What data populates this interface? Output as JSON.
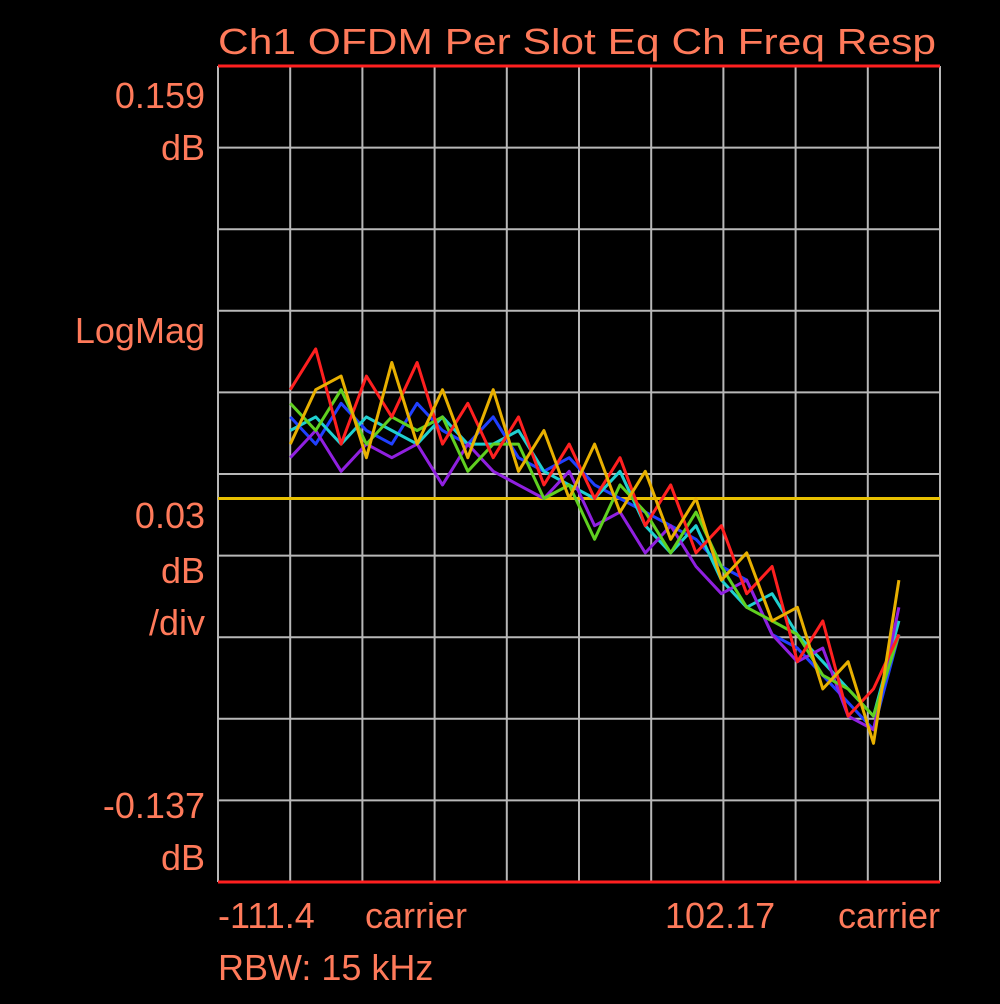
{
  "chart_data": {
    "type": "line",
    "title": "Ch1 OFDM Per Slot Eq Ch Freq Resp",
    "y_unit": "dB",
    "y_mode": "LogMag",
    "scale_per_div": 0.03,
    "per_div_label": "/div",
    "y_bottom_label": -0.137,
    "x_unit": "carrier",
    "rbw_label": "RBW: 15 kHz",
    "xlim": [
      -111.4,
      102.17
    ],
    "ylim": [
      -0.141,
      0.159
    ],
    "x_divisions": 10,
    "y_divisions": 10,
    "grid": true,
    "reference_line": {
      "value": 0,
      "color": "#e8c000"
    },
    "x": [
      -90,
      -82.5,
      -75,
      -67.5,
      -60,
      -52.5,
      -45,
      -37.5,
      -30,
      -22.5,
      -15,
      -7.5,
      0,
      7.5,
      15,
      22.5,
      30,
      37.5,
      45,
      52.5,
      60,
      67.5,
      75,
      82.5,
      90
    ],
    "series": [
      {
        "color": "#2040ff",
        "values": [
          0.03,
          0.02,
          0.035,
          0.025,
          0.02,
          0.035,
          0.025,
          0.02,
          0.03,
          0.015,
          0.01,
          0.015,
          0.005,
          0.0,
          -0.005,
          -0.01,
          -0.015,
          -0.025,
          -0.03,
          -0.05,
          -0.055,
          -0.065,
          -0.075,
          -0.085,
          -0.05
        ]
      },
      {
        "color": "#20d0d0",
        "values": [
          0.025,
          0.03,
          0.02,
          0.03,
          0.025,
          0.02,
          0.03,
          0.02,
          0.02,
          0.025,
          0.01,
          0.005,
          0.0,
          0.01,
          -0.01,
          -0.02,
          -0.01,
          -0.03,
          -0.04,
          -0.035,
          -0.05,
          -0.06,
          -0.07,
          -0.08,
          -0.045
        ]
      },
      {
        "color": "#9020e0",
        "values": [
          0.015,
          0.025,
          0.01,
          0.02,
          0.015,
          0.02,
          0.005,
          0.02,
          0.01,
          0.005,
          0.0,
          0.01,
          -0.01,
          -0.005,
          -0.02,
          -0.01,
          -0.025,
          -0.035,
          -0.03,
          -0.05,
          -0.06,
          -0.055,
          -0.08,
          -0.085,
          -0.04
        ]
      },
      {
        "color": "#60d020",
        "values": [
          0.035,
          0.025,
          0.04,
          0.02,
          0.03,
          0.025,
          0.03,
          0.01,
          0.02,
          0.02,
          0.0,
          0.005,
          -0.015,
          0.005,
          -0.005,
          -0.02,
          -0.005,
          -0.025,
          -0.04,
          -0.045,
          -0.05,
          -0.065,
          -0.07,
          -0.08,
          -0.05
        ]
      },
      {
        "color": "#ff2020",
        "values": [
          0.04,
          0.055,
          0.02,
          0.045,
          0.03,
          0.05,
          0.02,
          0.035,
          0.015,
          0.03,
          0.005,
          0.02,
          0.0,
          0.015,
          -0.01,
          0.005,
          -0.02,
          -0.01,
          -0.035,
          -0.025,
          -0.06,
          -0.045,
          -0.08,
          -0.07,
          -0.05
        ]
      },
      {
        "color": "#e8b000",
        "values": [
          0.02,
          0.04,
          0.045,
          0.015,
          0.05,
          0.02,
          0.04,
          0.015,
          0.04,
          0.01,
          0.025,
          0.0,
          0.02,
          -0.005,
          0.01,
          -0.015,
          0.0,
          -0.03,
          -0.02,
          -0.045,
          -0.04,
          -0.07,
          -0.06,
          -0.09,
          -0.03
        ]
      }
    ]
  }
}
